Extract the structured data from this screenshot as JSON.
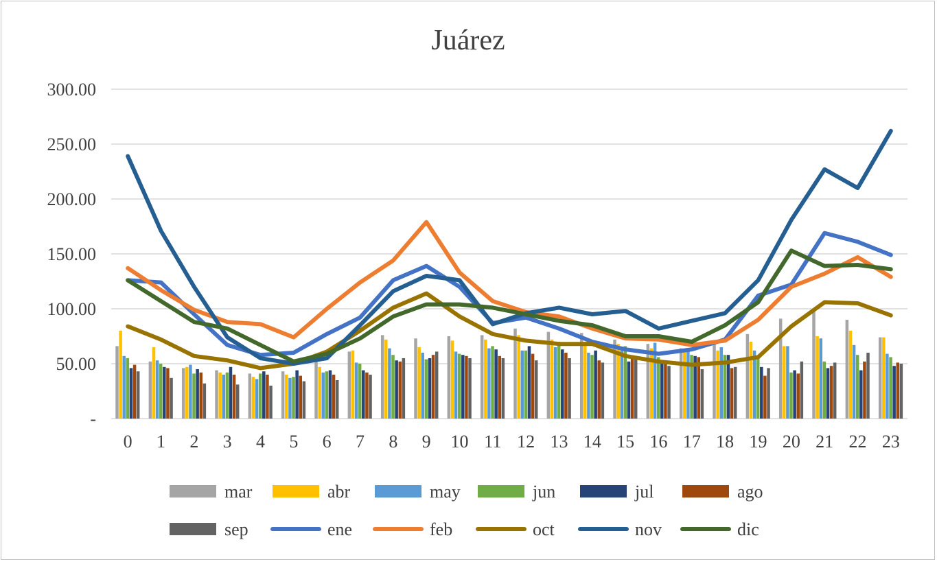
{
  "chart_data": {
    "type": "bar",
    "title": "Juárez",
    "xlabel": "",
    "ylabel": "",
    "ylim": [
      0,
      300
    ],
    "y_ticks": [
      {
        "value": 0,
        "label": "-"
      },
      {
        "value": 50,
        "label": "50.00"
      },
      {
        "value": 100,
        "label": "100.00"
      },
      {
        "value": 150,
        "label": "150.00"
      },
      {
        "value": 200,
        "label": "200.00"
      },
      {
        "value": 250,
        "label": "250.00"
      },
      {
        "value": 300,
        "label": "300.00"
      }
    ],
    "grid": true,
    "legend_position": "bottom",
    "categories": [
      "0",
      "1",
      "2",
      "3",
      "4",
      "5",
      "6",
      "7",
      "8",
      "9",
      "10",
      "11",
      "12",
      "13",
      "14",
      "15",
      "16",
      "17",
      "18",
      "19",
      "20",
      "21",
      "22",
      "23"
    ],
    "bar_series": [
      {
        "name": "mar",
        "color": "#a5a5a5",
        "values": [
          66,
          52,
          46,
          44,
          41,
          43,
          52,
          61,
          76,
          73,
          75,
          76,
          82,
          79,
          78,
          72,
          68,
          64,
          70,
          77,
          91,
          98,
          90,
          74
        ]
      },
      {
        "name": "abr",
        "color": "#ffc000",
        "values": [
          80,
          65,
          47,
          42,
          38,
          40,
          47,
          62,
          72,
          65,
          71,
          72,
          76,
          72,
          70,
          68,
          64,
          61,
          62,
          70,
          66,
          75,
          80,
          74
        ]
      },
      {
        "name": "may",
        "color": "#5b9bd5",
        "values": [
          57,
          53,
          49,
          40,
          36,
          37,
          42,
          51,
          64,
          60,
          61,
          64,
          62,
          65,
          60,
          62,
          69,
          61,
          65,
          62,
          66,
          73,
          67,
          59
        ]
      },
      {
        "name": "jun",
        "color": "#70ad47",
        "values": [
          55,
          50,
          41,
          42,
          41,
          38,
          43,
          50,
          58,
          54,
          59,
          66,
          62,
          70,
          58,
          66,
          56,
          58,
          58,
          56,
          42,
          52,
          58,
          56
        ]
      },
      {
        "name": "jul",
        "color": "#264478",
        "values": [
          46,
          47,
          45,
          47,
          43,
          44,
          44,
          44,
          53,
          55,
          58,
          63,
          66,
          63,
          62,
          52,
          53,
          57,
          58,
          47,
          44,
          46,
          44,
          48
        ]
      },
      {
        "name": "ago",
        "color": "#9e480e",
        "values": [
          49,
          46,
          42,
          40,
          40,
          39,
          40,
          42,
          52,
          58,
          57,
          57,
          59,
          60,
          53,
          57,
          50,
          56,
          46,
          39,
          41,
          48,
          52,
          51
        ]
      },
      {
        "name": "sep",
        "color": "#636363",
        "values": [
          43,
          37,
          32,
          31,
          30,
          34,
          35,
          40,
          55,
          61,
          55,
          55,
          53,
          55,
          51,
          54,
          48,
          45,
          47,
          46,
          52,
          51,
          60,
          50
        ]
      }
    ],
    "line_series": [
      {
        "name": "ene",
        "color": "#4472c4",
        "values": [
          126,
          124,
          95,
          67,
          58,
          60,
          77,
          92,
          126,
          139,
          120,
          87,
          92,
          82,
          70,
          63,
          59,
          63,
          72,
          112,
          122,
          169,
          161,
          149
        ]
      },
      {
        "name": "feb",
        "color": "#ed7d31",
        "values": [
          137,
          117,
          99,
          88,
          86,
          74,
          100,
          124,
          144,
          179,
          133,
          107,
          97,
          93,
          82,
          73,
          72,
          67,
          71,
          90,
          120,
          132,
          147,
          129
        ]
      },
      {
        "name": "oct",
        "color": "#997300",
        "values": [
          84,
          72,
          57,
          53,
          46,
          50,
          61,
          80,
          101,
          114,
          93,
          77,
          71,
          68,
          68,
          57,
          52,
          49,
          51,
          56,
          84,
          106,
          105,
          94
        ]
      },
      {
        "name": "nov",
        "color": "#255e91",
        "values": [
          239,
          171,
          120,
          74,
          55,
          50,
          55,
          85,
          116,
          130,
          126,
          86,
          96,
          101,
          95,
          98,
          82,
          89,
          96,
          126,
          181,
          227,
          210,
          262
        ]
      },
      {
        "name": "dic",
        "color": "#43682b",
        "values": [
          126,
          107,
          88,
          82,
          67,
          52,
          59,
          73,
          93,
          104,
          104,
          101,
          95,
          89,
          85,
          75,
          75,
          70,
          85,
          106,
          153,
          139,
          140,
          136
        ]
      }
    ],
    "legend_order": [
      "mar",
      "abr",
      "may",
      "jun",
      "jul",
      "ago",
      "sep",
      "ene",
      "feb",
      "oct",
      "nov",
      "dic"
    ]
  }
}
